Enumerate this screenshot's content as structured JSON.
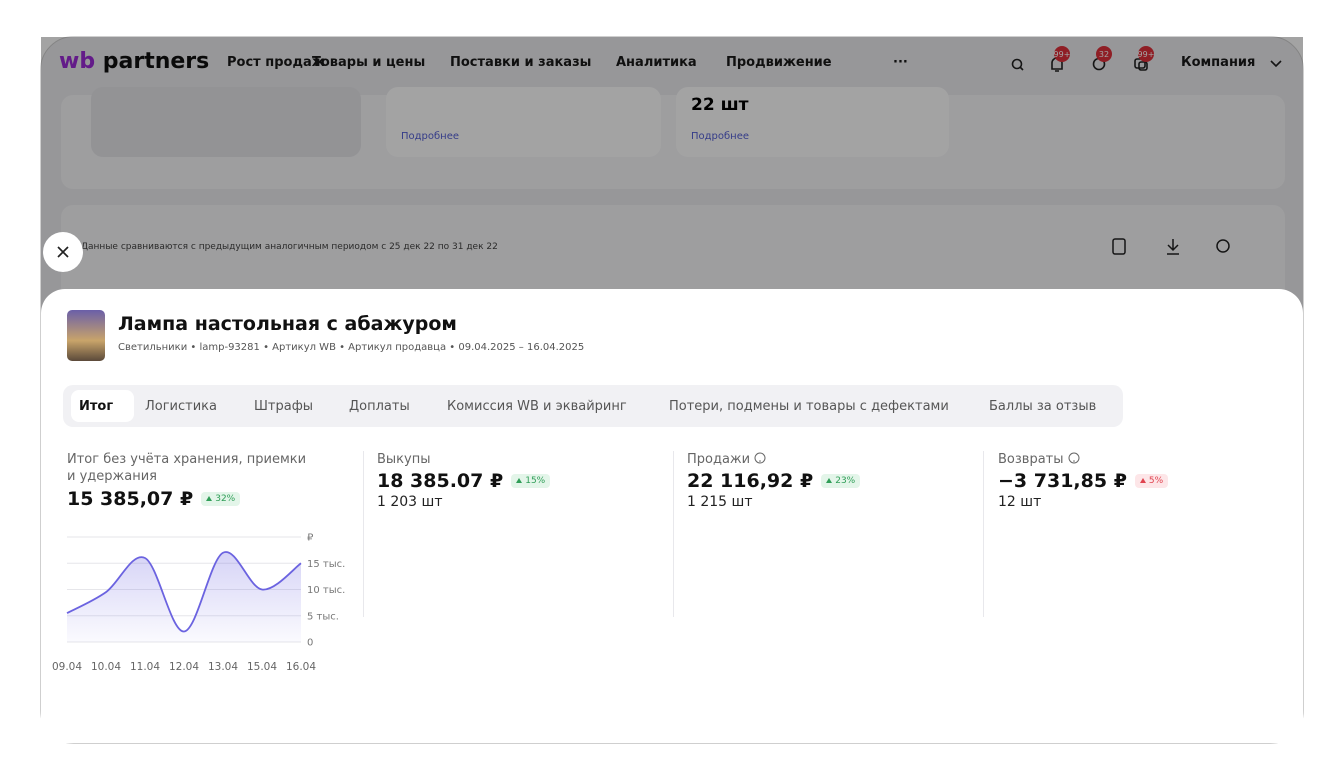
{
  "nav": {
    "logo_mark": "wb",
    "logo_name": "partners",
    "items": [
      "Рост продаж",
      "Товары и цены",
      "Поставки и заказы",
      "Аналитика",
      "Продвижение"
    ],
    "more": "···",
    "badges": [
      "99+",
      "32",
      "99+"
    ],
    "account": "Компания"
  },
  "background": {
    "cards": [
      {
        "link": "Подробнее"
      },
      {
        "value": "22 шт",
        "link": "Подробнее"
      }
    ],
    "note": "Данные сравниваются с предыдущим аналогичным периодом с 25 дек 22 по 31 дек 22"
  },
  "product": {
    "title": "Лампа настольная с абажуром",
    "meta": "Светильники • lamp-93281 • Артикул WB • Артикул продавца • 09.04.2025 – 16.04.2025"
  },
  "tabs": [
    "Итог",
    "Логистика",
    "Штрафы",
    "Доплаты",
    "Комиссия WB и эквайринг",
    "Потери, подмены и товары с дефектами",
    "Баллы за отзыв"
  ],
  "metrics": [
    {
      "label": "Итог без учёта хранения, приемки и удержания",
      "value": "15 385,07 ₽",
      "change": "32%"
    },
    {
      "label": "Выкупы",
      "value": "18 385.07 ₽",
      "change": "15%",
      "count": "1 203 шт"
    },
    {
      "label": "Продажи",
      "value": "22 116,92 ₽",
      "change": "23%",
      "count": "1 215 шт"
    },
    {
      "label": "Возвраты",
      "value": "−3 731,85 ₽",
      "change": "5%",
      "count": "12 шт"
    }
  ],
  "chart_data": {
    "type": "line",
    "categories": [
      "09.04",
      "10.04",
      "11.04",
      "12.04",
      "13.04",
      "15.04",
      "16.04"
    ],
    "values": [
      5500,
      9500,
      16000,
      2000,
      17000,
      10000,
      15000
    ],
    "color": "#6b63e0",
    "ylim": [
      0,
      20000
    ],
    "yticks": [
      0,
      {
        "value": 5000,
        "label": "5 тыс."
      },
      {
        "value": 10000,
        "label": "10 тыс."
      },
      {
        "value": 15000,
        "label": "15 тыс."
      },
      {
        "value": 20000,
        "label": "₽"
      }
    ],
    "grid": true
  }
}
